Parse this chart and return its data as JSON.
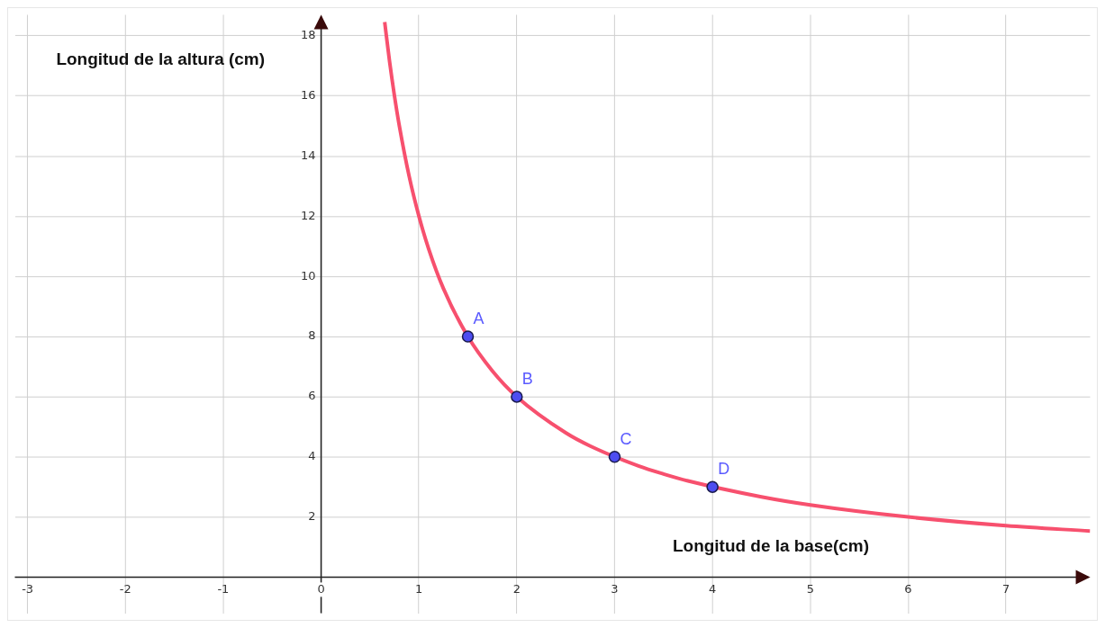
{
  "chart_data": {
    "type": "line",
    "xlabel": "Longitud de la base(cm)",
    "ylabel": "Longitud de la altura (cm)",
    "xlim": [
      -3.13,
      7.86
    ],
    "ylim": [
      -1.2,
      18.7
    ],
    "xticks": [
      -3,
      -2,
      -1,
      0,
      1,
      2,
      3,
      4,
      5,
      6,
      7
    ],
    "yticks": [
      2,
      4,
      6,
      8,
      10,
      12,
      14,
      16,
      18
    ],
    "grid": true,
    "legend": false,
    "series": [
      {
        "color": "#f7506e",
        "marker": "none",
        "x": [
          0.65,
          0.7,
          0.75,
          0.8,
          0.9,
          1,
          1.1,
          1.25,
          1.5,
          1.75,
          2,
          2.5,
          2.75,
          3.25,
          3.5,
          3.75,
          4.5,
          5,
          6,
          7,
          7.86
        ],
        "values": [
          18.46,
          17.14,
          16,
          15,
          13.33,
          12,
          10.91,
          9.6,
          8,
          6.86,
          6,
          4.8,
          4.36,
          3.69,
          3.43,
          3.2,
          2.67,
          2.4,
          2,
          1.71,
          1.53
        ]
      },
      {
        "type": "scatter",
        "color": "#4d4df0",
        "marker": "circle",
        "x": [
          1.5,
          2,
          3,
          4
        ],
        "values": [
          8,
          6,
          4,
          3
        ]
      }
    ],
    "annotations": [
      {
        "text": "A",
        "x": 1.5,
        "y": 8
      },
      {
        "text": "B",
        "x": 2,
        "y": 6
      },
      {
        "text": "C",
        "x": 3,
        "y": 4
      },
      {
        "text": "D",
        "x": 4,
        "y": 3
      }
    ]
  }
}
